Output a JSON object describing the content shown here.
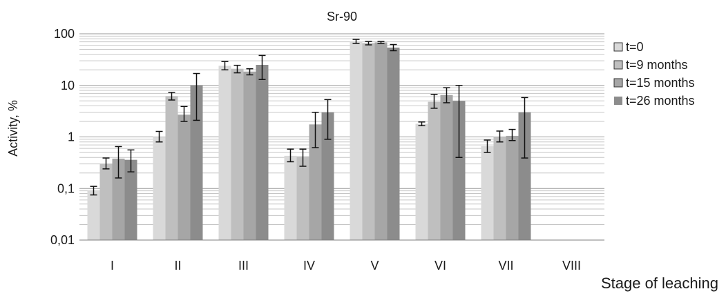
{
  "chart_data": {
    "type": "bar",
    "title": "Sr-90",
    "xlabel": "Stage of leaching",
    "ylabel": "Activity,  %",
    "y_scale": "log",
    "ylim": [
      0.01,
      100
    ],
    "y_ticks": [
      {
        "value": 0.01,
        "label": "0,01"
      },
      {
        "value": 0.1,
        "label": "0,1"
      },
      {
        "value": 1,
        "label": "1"
      },
      {
        "value": 10,
        "label": "10"
      },
      {
        "value": 100,
        "label": "100"
      }
    ],
    "grid": true,
    "legend_position": "right",
    "categories": [
      "I",
      "II",
      "III",
      "IV",
      "V",
      "VI",
      "VII",
      "VIII"
    ],
    "series": [
      {
        "name": "t=0",
        "color": "#d9d9d9",
        "values": [
          0.09,
          1.0,
          24,
          0.43,
          71,
          1.8,
          0.66,
          null
        ],
        "err_low": [
          0.075,
          0.8,
          20,
          0.33,
          65,
          1.65,
          0.5,
          null
        ],
        "err_high": [
          0.11,
          1.28,
          29,
          0.58,
          78,
          1.95,
          0.87,
          null
        ]
      },
      {
        "name": "t=9 months",
        "color": "#bfbfbf",
        "values": [
          0.3,
          6.2,
          21,
          0.42,
          66,
          4.8,
          1.0,
          null
        ],
        "err_low": [
          0.24,
          5.2,
          17.5,
          0.27,
          61,
          3.6,
          0.8,
          null
        ],
        "err_high": [
          0.39,
          7.3,
          24.5,
          0.58,
          71,
          6.7,
          1.3,
          null
        ]
      },
      {
        "name": "t=15 months",
        "color": "#a6a6a6",
        "values": [
          0.38,
          2.7,
          18.5,
          1.75,
          68,
          6.5,
          1.05,
          null
        ],
        "err_low": [
          0.16,
          2.0,
          16,
          0.62,
          65,
          4.6,
          0.85,
          null
        ],
        "err_high": [
          0.65,
          3.9,
          21,
          3.0,
          71,
          9.0,
          1.4,
          null
        ]
      },
      {
        "name": "t=26 months",
        "color": "#8c8c8c",
        "values": [
          0.36,
          10,
          25,
          3.0,
          54,
          5.0,
          3.0,
          null
        ],
        "err_low": [
          0.21,
          2.1,
          13,
          0.9,
          47,
          0.4,
          0.39,
          null
        ],
        "err_high": [
          0.56,
          17,
          38,
          5.3,
          62,
          10,
          5.8,
          null
        ]
      }
    ]
  }
}
